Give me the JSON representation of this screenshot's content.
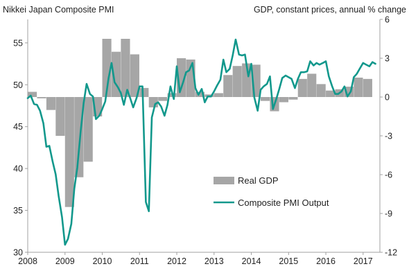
{
  "chart_data": {
    "type": "bar+line",
    "left_axis_title": "Nikkei Japan Composite PMI",
    "right_axis_title": "GDP, constant prices, annual % change",
    "left_axis": {
      "min": 30,
      "max": 57.8,
      "ticks": [
        "30",
        "35",
        "40",
        "45",
        "50",
        "55"
      ],
      "tick_values": [
        30,
        35,
        40,
        45,
        50,
        55
      ]
    },
    "right_axis": {
      "min": -12,
      "max": 6,
      "ticks": [
        "-12",
        "-9",
        "-6",
        "-3",
        "0",
        "3",
        "6"
      ],
      "tick_values": [
        -12,
        -9,
        -6,
        -3,
        0,
        3,
        6
      ]
    },
    "x_axis": {
      "min": 2008,
      "max": 2017.45,
      "ticks": [
        "2008",
        "2009",
        "2010",
        "2011",
        "2012",
        "2013",
        "2014",
        "2015",
        "2016",
        "2017"
      ],
      "tick_values": [
        2008,
        2009,
        2010,
        2011,
        2012,
        2013,
        2014,
        2015,
        2016,
        2017
      ]
    },
    "grid": false,
    "legend": {
      "placement": "lower-center",
      "entries": [
        "Real GDP",
        "Composite PMI Output"
      ]
    },
    "colors": {
      "gdp": "#a6a6a6",
      "pmi": "#12988c",
      "axis": "#a0a0a0"
    },
    "series": [
      {
        "name": "Real GDP",
        "axis": "right",
        "type": "bar",
        "x": [
          2008.0,
          2008.25,
          2008.5,
          2008.75,
          2009.0,
          2009.25,
          2009.5,
          2009.75,
          2010.0,
          2010.25,
          2010.5,
          2010.75,
          2011.0,
          2011.25,
          2011.5,
          2011.75,
          2012.0,
          2012.25,
          2012.5,
          2012.75,
          2013.0,
          2013.25,
          2013.5,
          2013.75,
          2014.0,
          2014.25,
          2014.5,
          2014.75,
          2015.0,
          2015.25,
          2015.5,
          2015.75,
          2016.0,
          2016.25,
          2016.5,
          2016.75,
          2017.0
        ],
        "values": [
          0.4,
          -0.1,
          -1.0,
          -3.0,
          -8.5,
          -6.2,
          -5.0,
          -1.5,
          4.5,
          3.5,
          4.5,
          3.3,
          0.7,
          -0.8,
          -0.3,
          0.3,
          3.0,
          2.9,
          0.4,
          0.2,
          0.3,
          1.7,
          2.4,
          2.6,
          2.5,
          -0.3,
          -1.1,
          -0.4,
          -0.2,
          1.4,
          1.8,
          1.0,
          0.5,
          0.6,
          0.8,
          1.5,
          1.4
        ]
      },
      {
        "name": "Composite PMI Output",
        "axis": "left",
        "type": "line",
        "x": [
          2008.0,
          2008.08,
          2008.17,
          2008.25,
          2008.33,
          2008.42,
          2008.5,
          2008.58,
          2008.67,
          2008.75,
          2008.83,
          2008.92,
          2009.0,
          2009.08,
          2009.17,
          2009.25,
          2009.33,
          2009.42,
          2009.5,
          2009.58,
          2009.67,
          2009.75,
          2009.83,
          2009.92,
          2010.0,
          2010.08,
          2010.17,
          2010.25,
          2010.33,
          2010.42,
          2010.5,
          2010.58,
          2010.67,
          2010.75,
          2010.83,
          2010.92,
          2011.0,
          2011.08,
          2011.17,
          2011.25,
          2011.33,
          2011.42,
          2011.5,
          2011.58,
          2011.67,
          2011.75,
          2011.83,
          2011.92,
          2012.0,
          2012.08,
          2012.17,
          2012.25,
          2012.33,
          2012.42,
          2012.5,
          2012.58,
          2012.67,
          2012.75,
          2012.83,
          2012.92,
          2013.0,
          2013.08,
          2013.17,
          2013.25,
          2013.33,
          2013.42,
          2013.5,
          2013.58,
          2013.67,
          2013.75,
          2013.83,
          2013.92,
          2014.0,
          2014.08,
          2014.17,
          2014.25,
          2014.33,
          2014.42,
          2014.5,
          2014.58,
          2014.67,
          2014.75,
          2014.83,
          2014.92,
          2015.0,
          2015.08,
          2015.17,
          2015.25,
          2015.33,
          2015.42,
          2015.5,
          2015.58,
          2015.67,
          2015.75,
          2015.83,
          2015.92,
          2016.0,
          2016.08,
          2016.17,
          2016.25,
          2016.33,
          2016.42,
          2016.5,
          2016.58,
          2016.67,
          2016.75,
          2016.83,
          2016.92,
          2017.0,
          2017.08,
          2017.17,
          2017.25,
          2017.33
        ],
        "values": [
          48.4,
          48.7,
          47.7,
          47.6,
          46.9,
          45.4,
          42.6,
          42.7,
          40.8,
          39.3,
          36.7,
          34.2,
          30.9,
          31.6,
          33.4,
          37.6,
          40.1,
          44.4,
          47.8,
          50.1,
          48.9,
          48.6,
          45.9,
          46.3,
          47.1,
          48.0,
          50.8,
          52.6,
          50.3,
          49.7,
          49.0,
          47.6,
          49.4,
          48.4,
          47.3,
          48.4,
          49.8,
          49.8,
          36.0,
          34.9,
          46.1,
          47.7,
          47.9,
          47.4,
          46.3,
          47.6,
          49.8,
          48.3,
          52.2,
          49.1,
          50.3,
          51.5,
          51.7,
          52.6,
          49.6,
          48.8,
          49.5,
          47.9,
          48.6,
          48.6,
          49.2,
          49.9,
          50.6,
          53.0,
          51.5,
          51.9,
          53.5,
          55.4,
          53.6,
          53.5,
          53.6,
          51.0,
          52.5,
          48.5,
          46.9,
          49.4,
          49.8,
          50.1,
          51.0,
          47.1,
          48.3,
          49.5,
          50.8,
          51.1,
          50.9,
          50.7,
          49.6,
          50.7,
          51.5,
          51.5,
          51.6,
          52.8,
          52.3,
          52.6,
          52.4,
          52.6,
          52.8,
          51.0,
          49.8,
          48.9,
          48.9,
          49.2,
          49.8,
          48.6,
          49.2,
          50.9,
          51.3,
          52.0,
          52.6,
          52.4,
          52.2,
          52.7,
          52.5
        ]
      }
    ]
  }
}
